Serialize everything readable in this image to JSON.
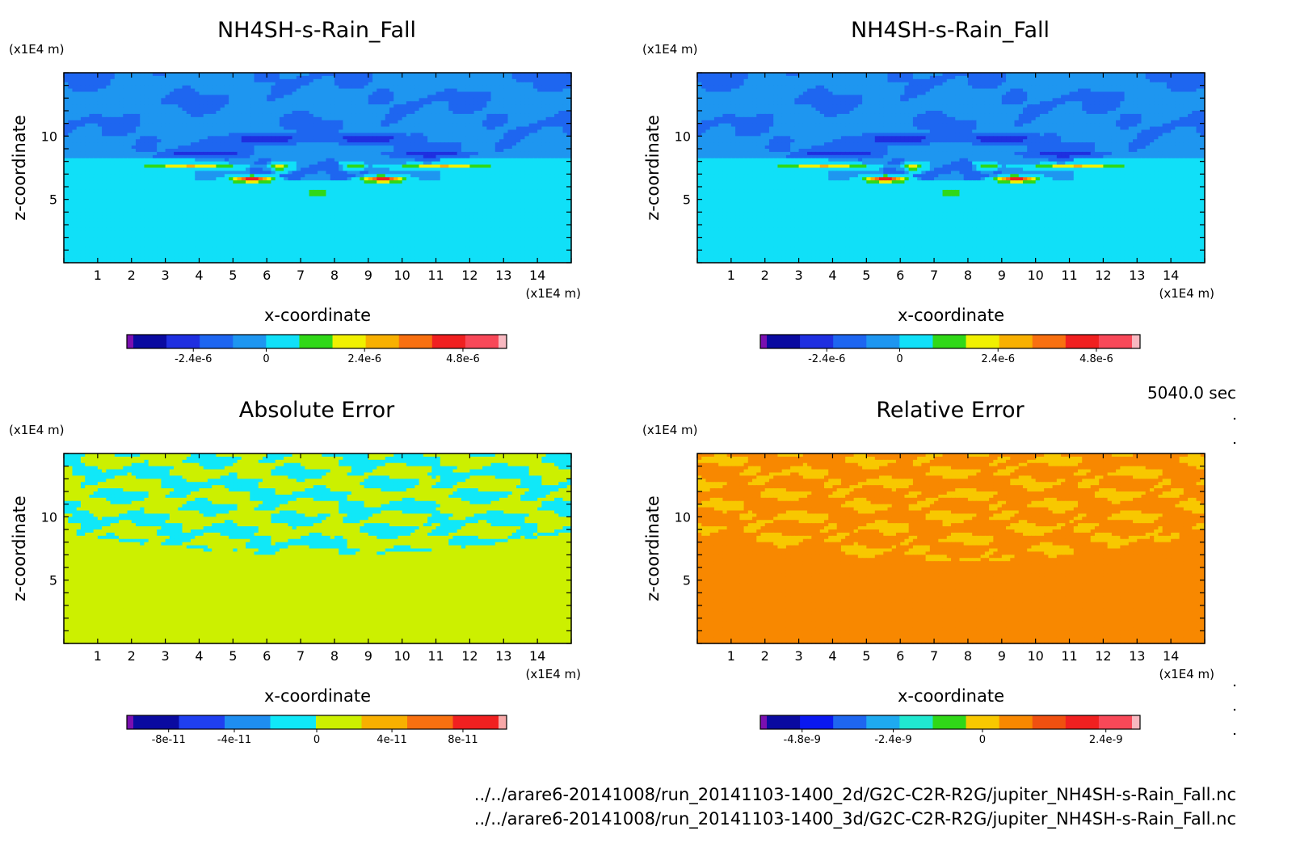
{
  "panels": [
    {
      "title": "NH4SH-s-Rain_Fall",
      "field": "a",
      "xunit": "(x1E4 m)",
      "yunit": "(x1E4 m)",
      "xlabel": "x-coordinate",
      "ylabel": "z-coordinate",
      "colorbar": {
        "colors": [
          "#7a0fb0",
          "#0a0aa0",
          "#1f2fe0",
          "#1e66f0",
          "#1e96f0",
          "#10e0f8",
          "#30d818",
          "#f0f000",
          "#f8b000",
          "#f87010",
          "#f02020",
          "#f84858",
          "#f8b8c0"
        ],
        "ticks": [
          "-2.4e-6",
          "0",
          "2.4e-6",
          "4.8e-6"
        ]
      }
    },
    {
      "title": "NH4SH-s-Rain_Fall",
      "field": "a",
      "xunit": "(x1E4 m)",
      "yunit": "(x1E4 m)",
      "xlabel": "x-coordinate",
      "ylabel": "z-coordinate",
      "colorbar": {
        "colors": [
          "#7a0fb0",
          "#0a0aa0",
          "#1f2fe0",
          "#1e66f0",
          "#1e96f0",
          "#10e0f8",
          "#30d818",
          "#f0f000",
          "#f8b000",
          "#f87010",
          "#f02020",
          "#f84858",
          "#f8b8c0"
        ],
        "ticks": [
          "-2.4e-6",
          "0",
          "2.4e-6",
          "4.8e-6"
        ]
      }
    },
    {
      "title": "Absolute Error",
      "field": "b",
      "xunit": "(x1E4 m)",
      "yunit": "(x1E4 m)",
      "xlabel": "x-coordinate",
      "ylabel": "z-coordinate",
      "colorbar": {
        "colors": [
          "#7a0fb0",
          "#0a0aa0",
          "#1f3ff0",
          "#1e8ef0",
          "#10e8f8",
          "#ccf000",
          "#f8b000",
          "#f87010",
          "#f02020",
          "#f8a8a8"
        ],
        "ticks": [
          "-8e-11",
          "-4e-11",
          "0",
          "4e-11",
          "8e-11"
        ]
      }
    },
    {
      "title": "Relative Error",
      "field": "c",
      "xunit": "(x1E4 m)",
      "yunit": "(x1E4 m)",
      "xlabel": "x-coordinate",
      "ylabel": "z-coordinate",
      "colorbar": {
        "colors": [
          "#7a0fb0",
          "#0a0aa0",
          "#0a18f0",
          "#1e66f0",
          "#1eaaf0",
          "#20e8d0",
          "#30d818",
          "#f8c800",
          "#f88800",
          "#f05010",
          "#f02020",
          "#f84858",
          "#f8b8c0"
        ],
        "ticks": [
          "-4.8e-9",
          "-2.4e-9",
          "0",
          "2.4e-9"
        ]
      }
    }
  ],
  "time_label": "5040.0 sec",
  "file_paths": [
    "../../arare6-20141008/run_20141103-1400_2d/G2C-C2R-R2G/jupiter_NH4SH-s-Rain_Fall.nc",
    "../../arare6-20141008/run_20141103-1400_3d/G2C-C2R-R2G/jupiter_NH4SH-s-Rain_Fall.nc"
  ],
  "chart_data": [
    {
      "type": "heatmap",
      "title": "NH4SH-s-Rain_Fall",
      "xlabel": "x-coordinate",
      "ylabel": "z-coordinate",
      "xunit": "(x1E4 m)",
      "yunit": "(x1E4 m)",
      "xlim": [
        0,
        15
      ],
      "ylim": [
        0,
        15
      ],
      "xticks": [
        1,
        2,
        3,
        4,
        5,
        6,
        7,
        8,
        9,
        10,
        11,
        12,
        13,
        14
      ],
      "yticks": [
        5,
        10
      ],
      "colorbar_ticks": [
        "-2.4e-6",
        "0",
        "2.4e-6",
        "4.8e-6"
      ]
    },
    {
      "type": "heatmap",
      "title": "NH4SH-s-Rain_Fall",
      "xlabel": "x-coordinate",
      "ylabel": "z-coordinate",
      "xunit": "(x1E4 m)",
      "yunit": "(x1E4 m)",
      "xlim": [
        0,
        15
      ],
      "ylim": [
        0,
        15
      ],
      "xticks": [
        1,
        2,
        3,
        4,
        5,
        6,
        7,
        8,
        9,
        10,
        11,
        12,
        13,
        14
      ],
      "yticks": [
        5,
        10
      ],
      "colorbar_ticks": [
        "-2.4e-6",
        "0",
        "2.4e-6",
        "4.8e-6"
      ]
    },
    {
      "type": "heatmap",
      "title": "Absolute Error",
      "xlabel": "x-coordinate",
      "ylabel": "z-coordinate",
      "xunit": "(x1E4 m)",
      "yunit": "(x1E4 m)",
      "xlim": [
        0,
        15
      ],
      "ylim": [
        0,
        15
      ],
      "xticks": [
        1,
        2,
        3,
        4,
        5,
        6,
        7,
        8,
        9,
        10,
        11,
        12,
        13,
        14
      ],
      "yticks": [
        5,
        10
      ],
      "colorbar_ticks": [
        "-8e-11",
        "-4e-11",
        "0",
        "4e-11",
        "8e-11"
      ]
    },
    {
      "type": "heatmap",
      "title": "Relative Error",
      "xlabel": "x-coordinate",
      "ylabel": "z-coordinate",
      "xunit": "(x1E4 m)",
      "yunit": "(x1E4 m)",
      "xlim": [
        0,
        15
      ],
      "ylim": [
        0,
        15
      ],
      "xticks": [
        1,
        2,
        3,
        4,
        5,
        6,
        7,
        8,
        9,
        10,
        11,
        12,
        13,
        14
      ],
      "yticks": [
        5,
        10
      ],
      "colorbar_ticks": [
        "-4.8e-9",
        "-2.4e-9",
        "0",
        "2.4e-9"
      ]
    }
  ]
}
